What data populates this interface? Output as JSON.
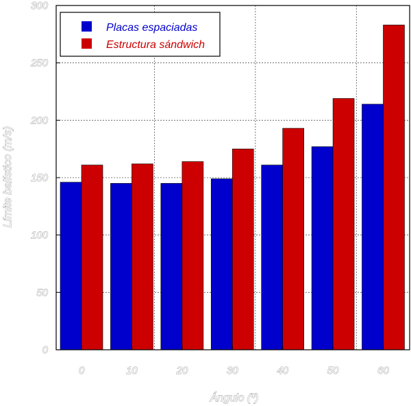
{
  "chart_data": {
    "type": "bar",
    "categories": [
      "0",
      "10",
      "20",
      "30",
      "40",
      "50",
      "60"
    ],
    "series": [
      {
        "name": "Placas espaciadas",
        "color": "#0000cc",
        "values": [
          146,
          145,
          145,
          149,
          161,
          177,
          214
        ]
      },
      {
        "name": "Estructura sándwich",
        "color": "#cc0000",
        "values": [
          161,
          162,
          164,
          175,
          193,
          219,
          283
        ]
      }
    ],
    "xlabel": "Ángulo (º)",
    "ylabel": "Límite balístico (m/s)",
    "ylim": [
      0,
      300
    ],
    "yticks": [
      "0",
      "50",
      "100",
      "150",
      "200",
      "250",
      "300"
    ],
    "grid": true,
    "legend_position": "top-left"
  }
}
